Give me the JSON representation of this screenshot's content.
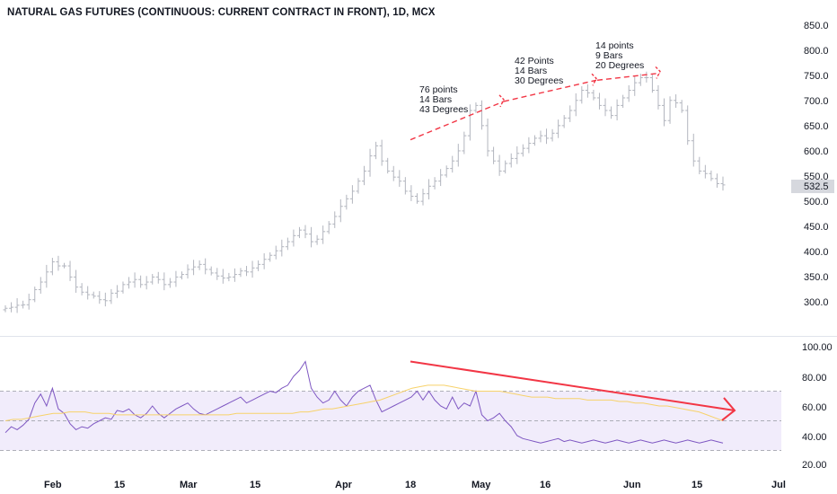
{
  "title": "NATURAL GAS FUTURES (CONTINUOUS: CURRENT CONTRACT IN FRONT), 1D, MCX",
  "price_axis": {
    "ticks": [
      "850.0",
      "800.0",
      "750.0",
      "700.0",
      "650.0",
      "600.0",
      "550.0",
      "500.0",
      "450.0",
      "400.0",
      "350.0",
      "300.0"
    ],
    "last_price_label": "532.5"
  },
  "rsi_axis": {
    "ticks": [
      "100.00",
      "80.00",
      "60.00",
      "40.00",
      "20.00"
    ]
  },
  "date_labels": [
    "Feb",
    "15",
    "Mar",
    "15",
    "Apr",
    "18",
    "May",
    "16",
    "Jun",
    "15",
    "Jul"
  ],
  "annotations": [
    {
      "lines": [
        "76 points",
        "14 Bars",
        "43 Degrees"
      ]
    },
    {
      "lines": [
        "42 Points",
        "14 Bars",
        "30 Degrees"
      ]
    },
    {
      "lines": [
        "14 points",
        "9 Bars",
        "20 Degrees"
      ]
    }
  ],
  "colors": {
    "bars": "#b2b5be",
    "rsi_line": "#7e57c2",
    "rsi_ma": "#f7d26a",
    "rsi_band": "#f1ecfb",
    "trend": "#f23645",
    "axis_text": "#131722"
  },
  "chart_data": [
    {
      "type": "ohlc",
      "title": "NATURAL GAS FUTURES (CONTINUOUS: CURRENT CONTRACT IN FRONT), 1D, MCX",
      "ylim": [
        270,
        870
      ],
      "last": 532.5,
      "closes": [
        288,
        290,
        294,
        295,
        305,
        325,
        340,
        360,
        380,
        372,
        372,
        350,
        330,
        320,
        315,
        312,
        305,
        303,
        318,
        322,
        335,
        340,
        345,
        335,
        340,
        350,
        345,
        335,
        340,
        350,
        355,
        365,
        370,
        375,
        365,
        358,
        352,
        348,
        350,
        355,
        362,
        360,
        368,
        375,
        385,
        393,
        402,
        410,
        420,
        432,
        443,
        435,
        420,
        425,
        440,
        455,
        470,
        490,
        505,
        520,
        540,
        560,
        590,
        610,
        580,
        560,
        548,
        540,
        520,
        510,
        500,
        515,
        530,
        540,
        552,
        565,
        580,
        600,
        630,
        680,
        690,
        650,
        600,
        580,
        560,
        575,
        585,
        595,
        605,
        615,
        625,
        630,
        625,
        635,
        650,
        665,
        680,
        700,
        720,
        715,
        705,
        690,
        680,
        670,
        690,
        705,
        720,
        735,
        745,
        745,
        720,
        690,
        660,
        700,
        695,
        680,
        620,
        580,
        560,
        555,
        545,
        535,
        532.5
      ],
      "trend_lines": [
        {
          "label": "76 points, 14 Bars, 43 Degrees",
          "from": {
            "date": "Apr 18",
            "price": 622
          },
          "to": {
            "date": "May 09",
            "price": 698
          }
        },
        {
          "label": "42 Points, 14 Bars, 30 Degrees",
          "from": {
            "date": "May 10",
            "price": 698
          },
          "to": {
            "date": "May 30",
            "price": 740
          }
        },
        {
          "label": "14 points, 9 Bars, 20 Degrees",
          "from": {
            "date": "May 31",
            "price": 740
          },
          "to": {
            "date": "Jun 12",
            "price": 754
          }
        }
      ]
    },
    {
      "type": "line",
      "title": "RSI",
      "ylim": [
        18,
        104
      ],
      "bands": {
        "upper": 70,
        "middle": 50,
        "lower": 30
      },
      "series": [
        {
          "values": [
            42,
            46,
            44,
            47,
            51,
            62,
            68,
            60,
            72,
            58,
            55,
            48,
            44,
            46,
            45,
            48,
            50,
            52,
            51,
            57,
            56,
            58,
            54,
            52,
            55,
            60,
            55,
            52,
            55,
            58,
            60,
            62,
            58,
            55,
            54,
            56,
            58,
            60,
            62,
            64,
            66,
            62,
            64,
            66,
            68,
            70,
            69,
            72,
            74,
            80,
            84,
            90,
            72,
            66,
            62,
            64,
            70,
            64,
            60,
            66,
            70,
            72,
            74,
            64,
            56,
            58,
            60,
            62,
            64,
            66,
            70,
            64,
            70,
            64,
            60,
            58,
            66,
            58,
            62,
            60,
            70,
            54,
            50,
            52,
            55,
            50,
            46,
            40,
            38,
            37,
            36,
            35,
            36,
            37,
            38,
            36,
            37,
            36,
            35,
            36,
            37,
            36,
            35,
            36,
            37,
            36,
            35,
            36,
            37,
            36,
            35,
            36,
            37,
            36,
            35,
            36,
            37,
            36,
            35,
            36,
            37,
            36,
            35,
            36,
            37,
            36,
            35,
            36,
            37,
            36,
            35,
            36,
            37,
            36,
            35,
            36,
            37,
            36,
            35,
            36,
            37,
            36
          ]
        },
        {
          "values": [
            50,
            51,
            51,
            52,
            53,
            54,
            55,
            55,
            56,
            56,
            56,
            55,
            55,
            55,
            54,
            54,
            54,
            54,
            54,
            54,
            54,
            54,
            54,
            54,
            54,
            54,
            54,
            54,
            54,
            55,
            55,
            55,
            55,
            55,
            55,
            55,
            55,
            56,
            56,
            57,
            58,
            58,
            59,
            60,
            61,
            62,
            63,
            64,
            66,
            68,
            70,
            72,
            73,
            74,
            74,
            74,
            73,
            72,
            71,
            70,
            70,
            70,
            70,
            69,
            68,
            67,
            66,
            66,
            66,
            65,
            65,
            65,
            65,
            64,
            64,
            64,
            64,
            63,
            63,
            62,
            62,
            61,
            60,
            60,
            59,
            58,
            57,
            56,
            54,
            52,
            50
          ]
        }
      ],
      "divergence_line": {
        "from_rsi": 90,
        "to_rsi": 57
      }
    }
  ]
}
